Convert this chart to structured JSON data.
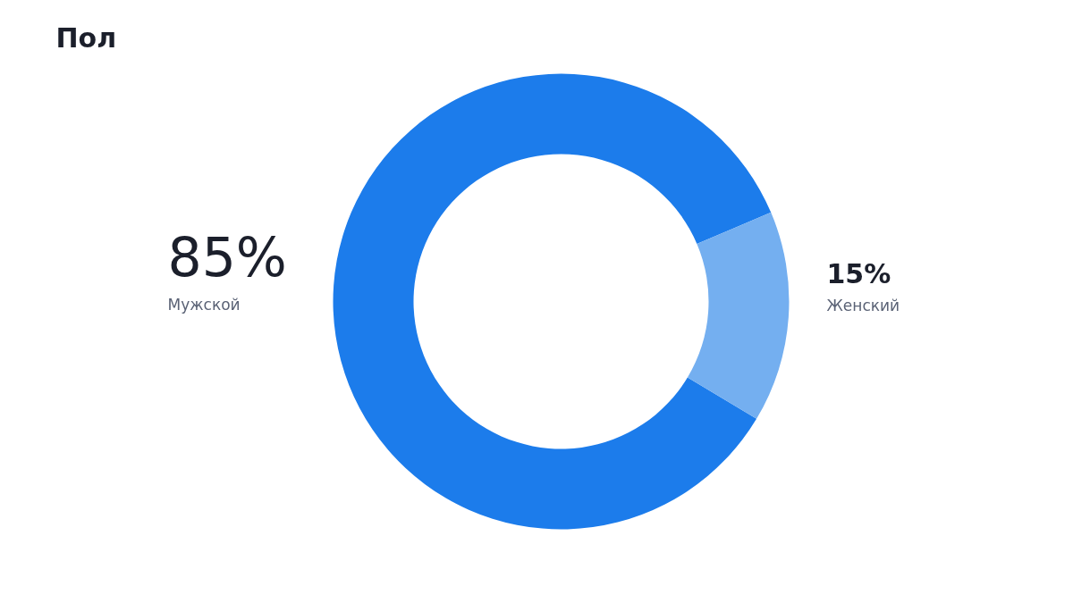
{
  "chart_data": {
    "type": "donut",
    "title": "Пол",
    "categories": [
      "Мужской",
      "Женский"
    ],
    "values": [
      85,
      15
    ],
    "colors": [
      "#1c7ceb",
      "#74aff0"
    ],
    "value_labels": [
      "85%",
      "15%"
    ]
  }
}
